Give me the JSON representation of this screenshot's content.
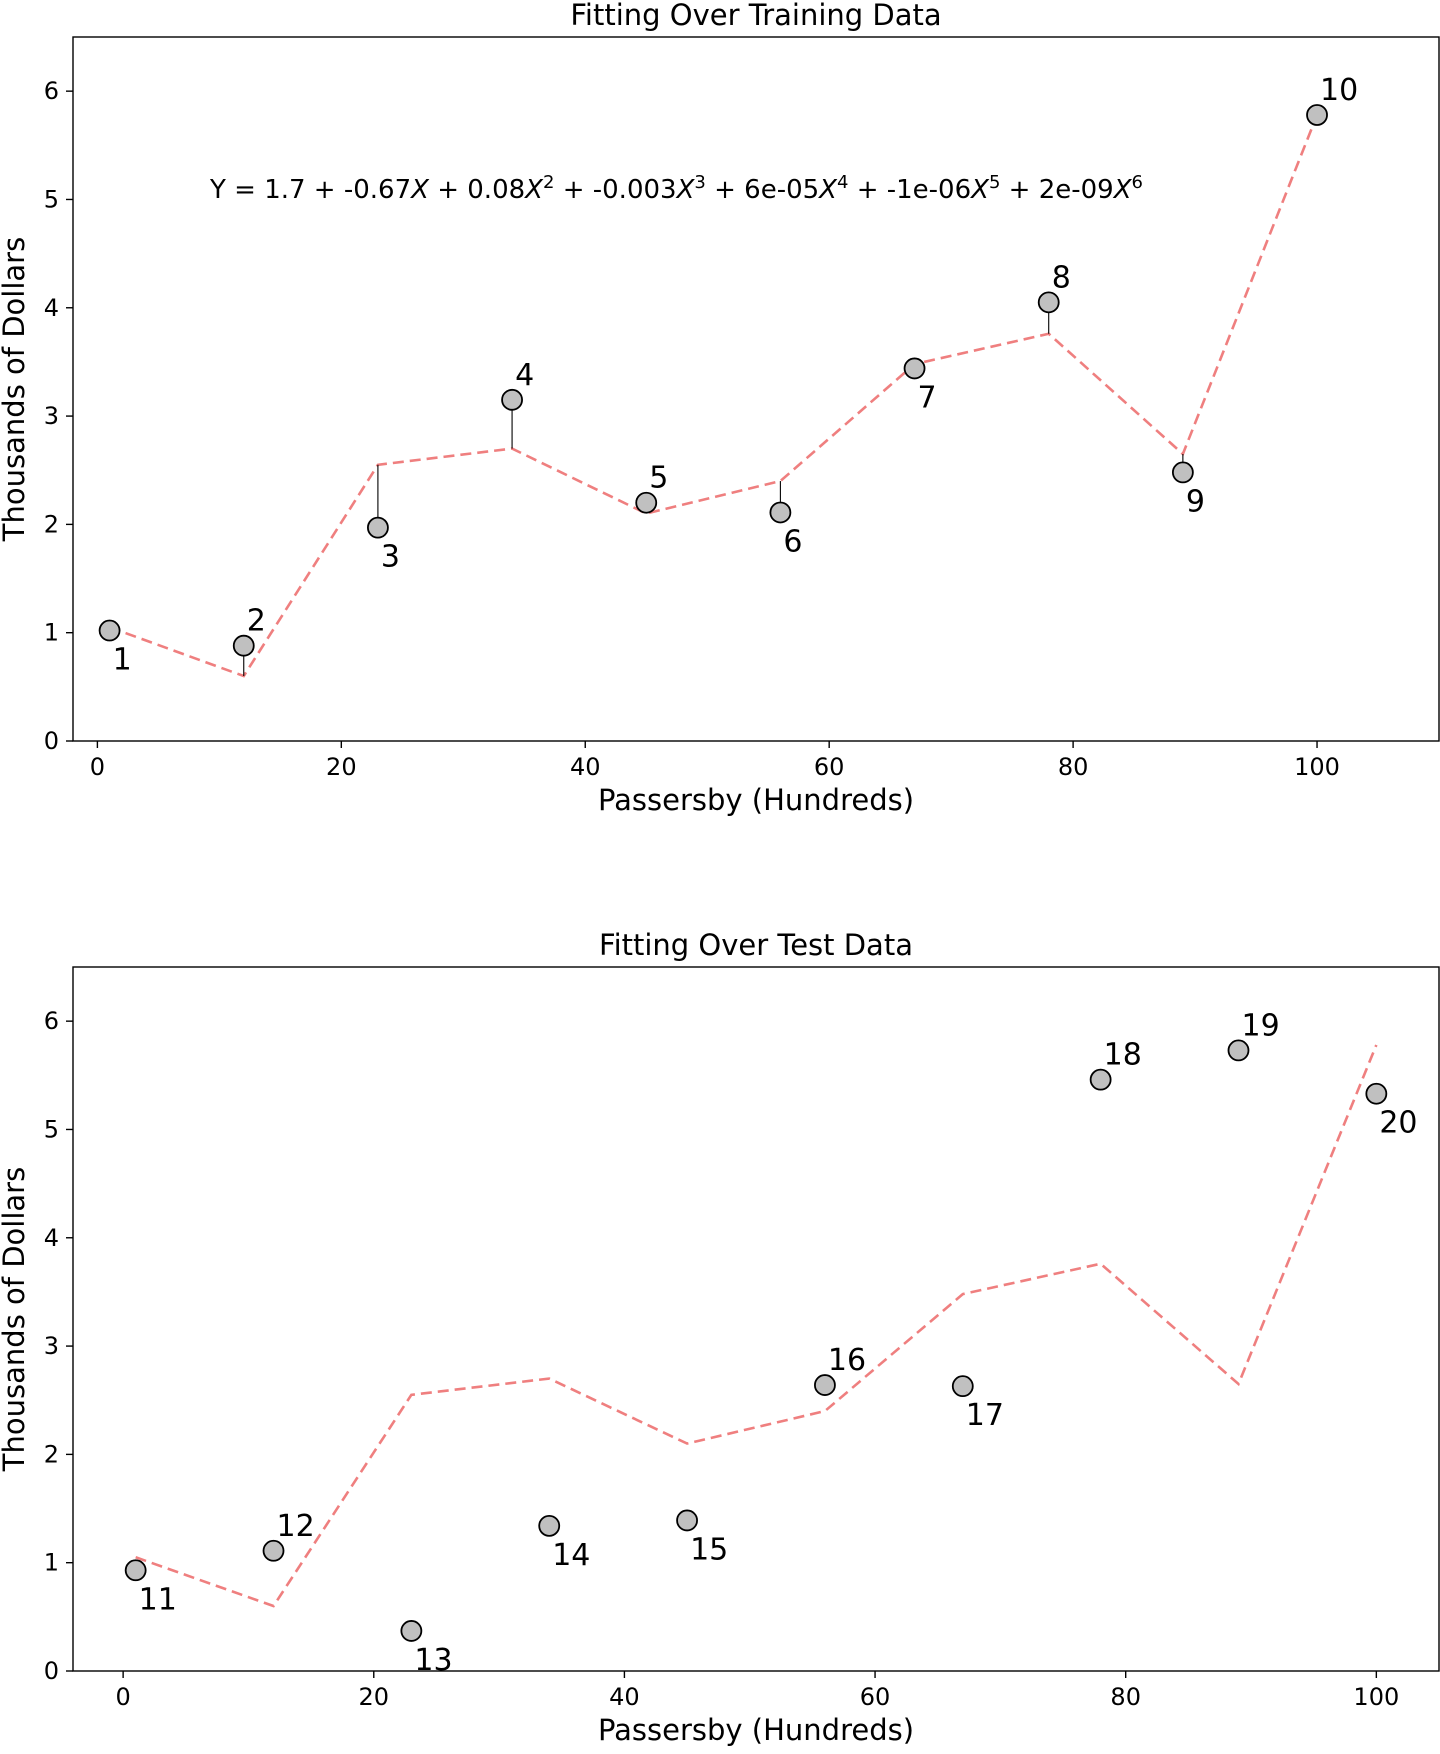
{
  "chart_data": [
    {
      "type": "scatter",
      "title": "Fitting Over Training Data",
      "xlabel": "Passersby (Hundreds)",
      "ylabel": "Thousands of Dollars",
      "xlim": [
        -2,
        110
      ],
      "ylim": [
        0,
        6.5
      ],
      "xticks": [
        0,
        20,
        40,
        60,
        80,
        100
      ],
      "yticks": [
        0,
        1,
        2,
        3,
        4,
        5,
        6
      ],
      "equation": "Y = 1.7 + -0.67X + 0.08X^2 + -0.003X^3 + 6e-05X^4 + -1e-06X^5 + 2e-09X^6",
      "equation_parts": [
        {
          "text": "Y = 1.7 + -0.67",
          "style": "normal"
        },
        {
          "text": "X",
          "style": "italic"
        },
        {
          "text": " + 0.08",
          "style": "normal"
        },
        {
          "text": "X",
          "style": "italic"
        },
        {
          "text": "2",
          "style": "sup"
        },
        {
          "text": " + -0.003",
          "style": "normal"
        },
        {
          "text": "X",
          "style": "italic"
        },
        {
          "text": "3",
          "style": "sup"
        },
        {
          "text": " + 6e-05",
          "style": "normal"
        },
        {
          "text": "X",
          "style": "italic"
        },
        {
          "text": "4",
          "style": "sup"
        },
        {
          "text": " + -1e-06",
          "style": "normal"
        },
        {
          "text": "X",
          "style": "italic"
        },
        {
          "text": "5",
          "style": "sup"
        },
        {
          "text": " + 2e-09",
          "style": "normal"
        },
        {
          "text": "X",
          "style": "italic"
        },
        {
          "text": "6",
          "style": "sup"
        }
      ],
      "fit_line": {
        "x": [
          1,
          12,
          23,
          34,
          45,
          56,
          67,
          78,
          89,
          100
        ],
        "y": [
          1.05,
          0.6,
          2.55,
          2.7,
          2.1,
          2.4,
          3.48,
          3.76,
          2.65,
          5.78
        ]
      },
      "show_residuals": true,
      "points": [
        {
          "label": "1",
          "x": 1,
          "y": 1.02,
          "label_pos": "below"
        },
        {
          "label": "2",
          "x": 12,
          "y": 0.88,
          "label_pos": "above"
        },
        {
          "label": "3",
          "x": 23,
          "y": 1.97,
          "label_pos": "below"
        },
        {
          "label": "4",
          "x": 34,
          "y": 3.15,
          "label_pos": "above"
        },
        {
          "label": "5",
          "x": 45,
          "y": 2.2,
          "label_pos": "above"
        },
        {
          "label": "6",
          "x": 56,
          "y": 2.11,
          "label_pos": "below"
        },
        {
          "label": "7",
          "x": 67,
          "y": 3.44,
          "label_pos": "below"
        },
        {
          "label": "8",
          "x": 78,
          "y": 4.05,
          "label_pos": "above"
        },
        {
          "label": "9",
          "x": 89,
          "y": 2.48,
          "label_pos": "below"
        },
        {
          "label": "10",
          "x": 100,
          "y": 5.78,
          "label_pos": "above"
        }
      ]
    },
    {
      "type": "scatter",
      "title": "Fitting Over Test Data",
      "xlabel": "Passersby (Hundreds)",
      "ylabel": "Thousands of Dollars",
      "xlim": [
        -4,
        105
      ],
      "ylim": [
        0,
        6.5
      ],
      "xticks": [
        0,
        20,
        40,
        60,
        80,
        100
      ],
      "yticks": [
        0,
        1,
        2,
        3,
        4,
        5,
        6
      ],
      "fit_line": {
        "x": [
          1,
          12,
          23,
          34,
          45,
          56,
          67,
          78,
          89,
          100
        ],
        "y": [
          1.05,
          0.6,
          2.55,
          2.7,
          2.1,
          2.4,
          3.48,
          3.76,
          2.65,
          5.78
        ]
      },
      "show_residuals": false,
      "points": [
        {
          "label": "11",
          "x": 1,
          "y": 0.93,
          "label_pos": "below"
        },
        {
          "label": "12",
          "x": 12,
          "y": 1.11,
          "label_pos": "above"
        },
        {
          "label": "13",
          "x": 23,
          "y": 0.37,
          "label_pos": "below"
        },
        {
          "label": "14",
          "x": 34,
          "y": 1.34,
          "label_pos": "below"
        },
        {
          "label": "15",
          "x": 45,
          "y": 1.39,
          "label_pos": "below"
        },
        {
          "label": "16",
          "x": 56,
          "y": 2.64,
          "label_pos": "above"
        },
        {
          "label": "17",
          "x": 67,
          "y": 2.63,
          "label_pos": "below"
        },
        {
          "label": "18",
          "x": 78,
          "y": 5.46,
          "label_pos": "above"
        },
        {
          "label": "19",
          "x": 89,
          "y": 5.73,
          "label_pos": "above"
        },
        {
          "label": "20",
          "x": 100,
          "y": 5.33,
          "label_pos": "below"
        }
      ]
    }
  ]
}
